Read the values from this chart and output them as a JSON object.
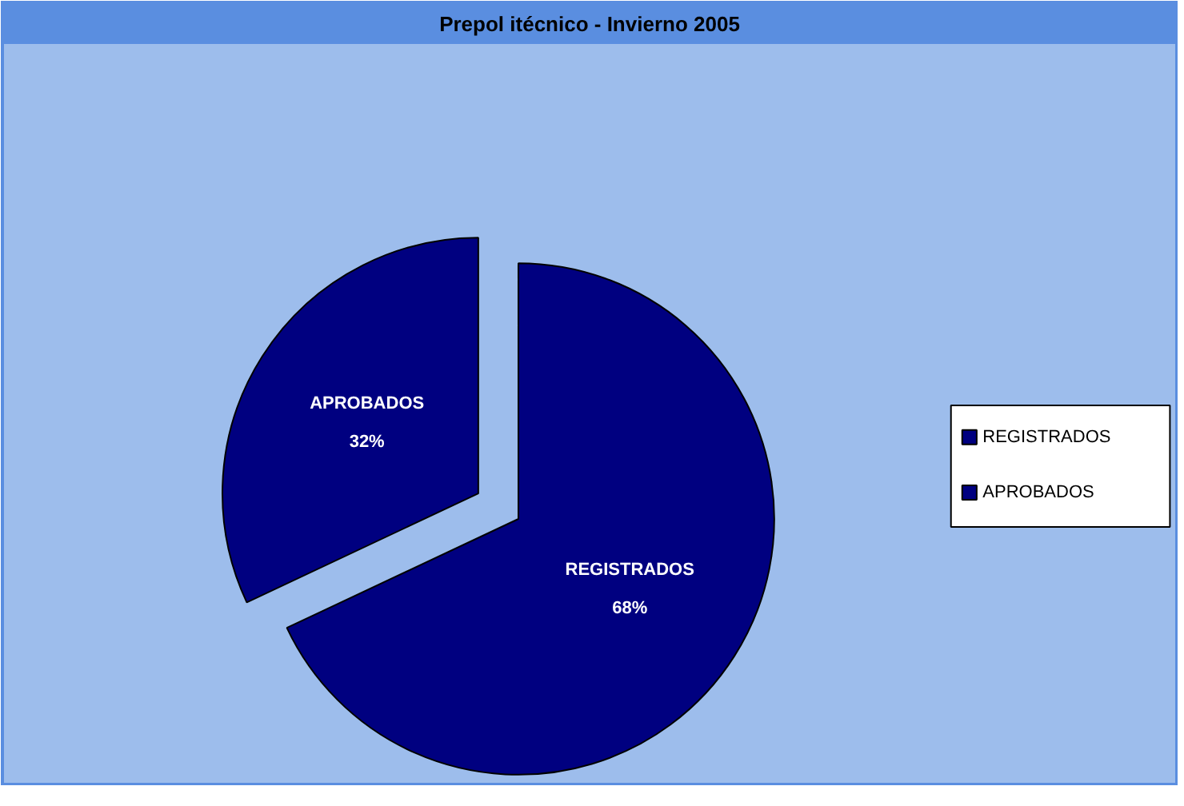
{
  "chart_data": {
    "type": "pie",
    "title": "Prepol itécnico - Invierno 2005",
    "categories": [
      "REGISTRADOS",
      "APROBADOS"
    ],
    "values": [
      68,
      32
    ],
    "value_labels": [
      "68%",
      "32%"
    ],
    "colors": [
      "#000080",
      "#000080"
    ],
    "legend": "right"
  }
}
